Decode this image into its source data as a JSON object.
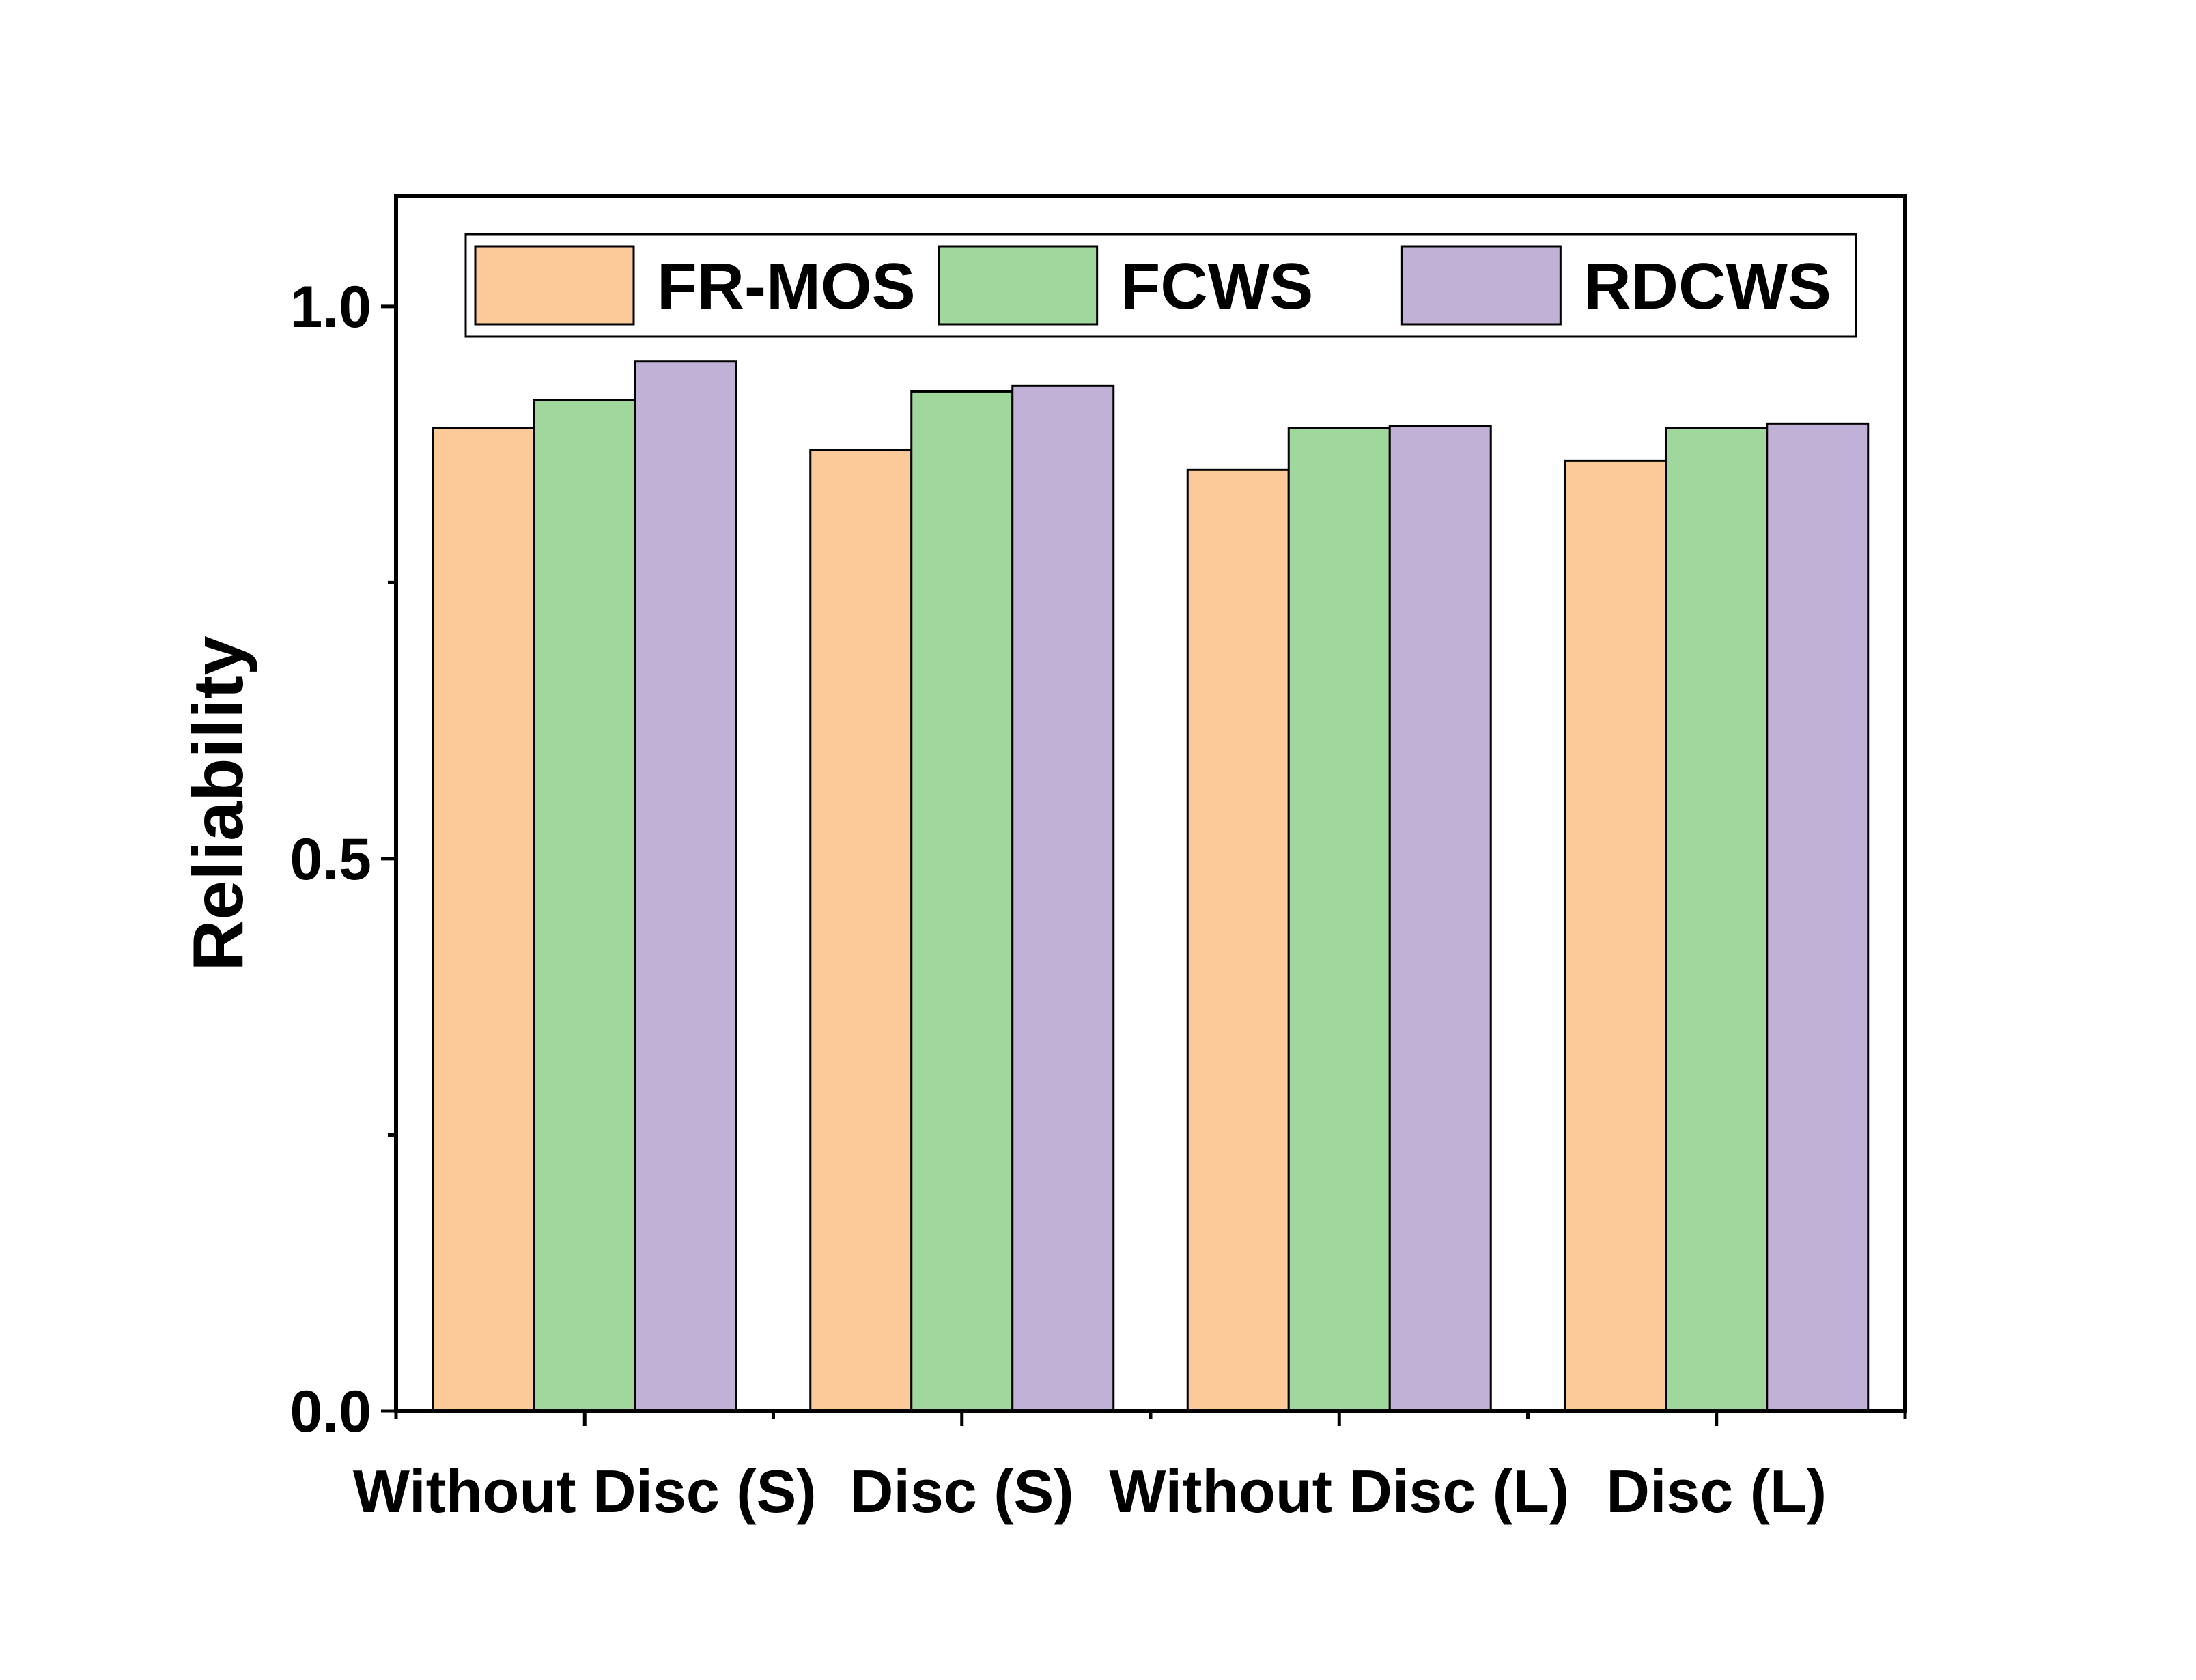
{
  "chart_data": {
    "type": "bar",
    "title": "",
    "xlabel": "",
    "ylabel": "Reliability",
    "ylim": [
      0,
      1.1
    ],
    "yticks": [
      {
        "value": 0.0,
        "label": "0.0"
      },
      {
        "value": 0.5,
        "label": "0.5"
      },
      {
        "value": 1.0,
        "label": "1.0"
      }
    ],
    "y_minor_ticks": [
      0.25,
      0.75
    ],
    "categories": [
      "Without Disc (S)",
      "Disc (S)",
      "Without Disc (L)",
      "Disc (L)"
    ],
    "series": [
      {
        "name": "FR-MOS",
        "color": "#fcc998",
        "values": [
          0.89,
          0.87,
          0.852,
          0.86
        ]
      },
      {
        "name": "FCWS",
        "color": "#9fd79d",
        "values": [
          0.915,
          0.923,
          0.89,
          0.89
        ]
      },
      {
        "name": "RDCWS",
        "color": "#c2b1d6",
        "values": [
          0.95,
          0.928,
          0.892,
          0.894
        ]
      }
    ],
    "legend_position": "top",
    "grid": false
  }
}
